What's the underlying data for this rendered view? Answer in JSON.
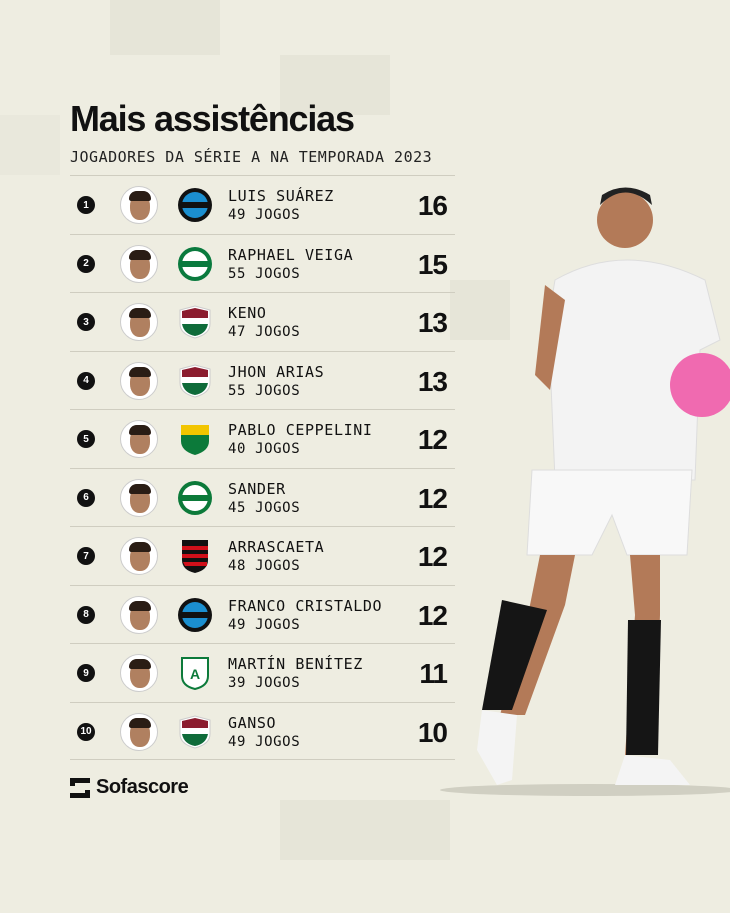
{
  "header": {
    "title": "Mais assistências",
    "subtitle": "JOGADORES DA SÉRIE A NA TEMPORADA 2023"
  },
  "rows": [
    {
      "rank": "1",
      "name": "LUIS SUÁREZ",
      "games": "49 JOGOS",
      "value": "16",
      "club": "gremio",
      "colors": [
        "#1b8fd0",
        "#111111"
      ]
    },
    {
      "rank": "2",
      "name": "RAPHAEL VEIGA",
      "games": "55 JOGOS",
      "value": "15",
      "club": "palmeiras",
      "colors": [
        "#0a7a3e",
        "#ffffff"
      ]
    },
    {
      "rank": "3",
      "name": "KENO",
      "games": "47 JOGOS",
      "value": "13",
      "club": "fluminense",
      "colors": [
        "#8b1c2e",
        "#0f6b3a"
      ]
    },
    {
      "rank": "4",
      "name": "JHON ARIAS",
      "games": "55 JOGOS",
      "value": "13",
      "club": "fluminense",
      "colors": [
        "#8b1c2e",
        "#0f6b3a"
      ]
    },
    {
      "rank": "5",
      "name": "PABLO CEPPELINI",
      "games": "40 JOGOS",
      "value": "12",
      "club": "cuiaba",
      "colors": [
        "#f2c500",
        "#0c7a3a"
      ]
    },
    {
      "rank": "6",
      "name": "SANDER",
      "games": "45 JOGOS",
      "value": "12",
      "club": "goias",
      "colors": [
        "#0c7a3a",
        "#ffffff"
      ]
    },
    {
      "rank": "7",
      "name": "ARRASCAETA",
      "games": "48 JOGOS",
      "value": "12",
      "club": "flamengo",
      "colors": [
        "#d0101a",
        "#111111"
      ]
    },
    {
      "rank": "8",
      "name": "FRANCO CRISTALDO",
      "games": "49 JOGOS",
      "value": "12",
      "club": "gremio",
      "colors": [
        "#1b8fd0",
        "#111111"
      ]
    },
    {
      "rank": "9",
      "name": "MARTÍN BENÍTEZ",
      "games": "39 JOGOS",
      "value": "11",
      "club": "america-mg",
      "colors": [
        "#0c7a3a",
        "#ffffff"
      ]
    },
    {
      "rank": "10",
      "name": "GANSO",
      "games": "49 JOGOS",
      "value": "10",
      "club": "fluminense",
      "colors": [
        "#8b1c2e",
        "#0f6b3a"
      ]
    }
  ],
  "footer": {
    "brand": "Sofascore"
  },
  "colors": {
    "background": "#eeede1",
    "text": "#111111"
  }
}
